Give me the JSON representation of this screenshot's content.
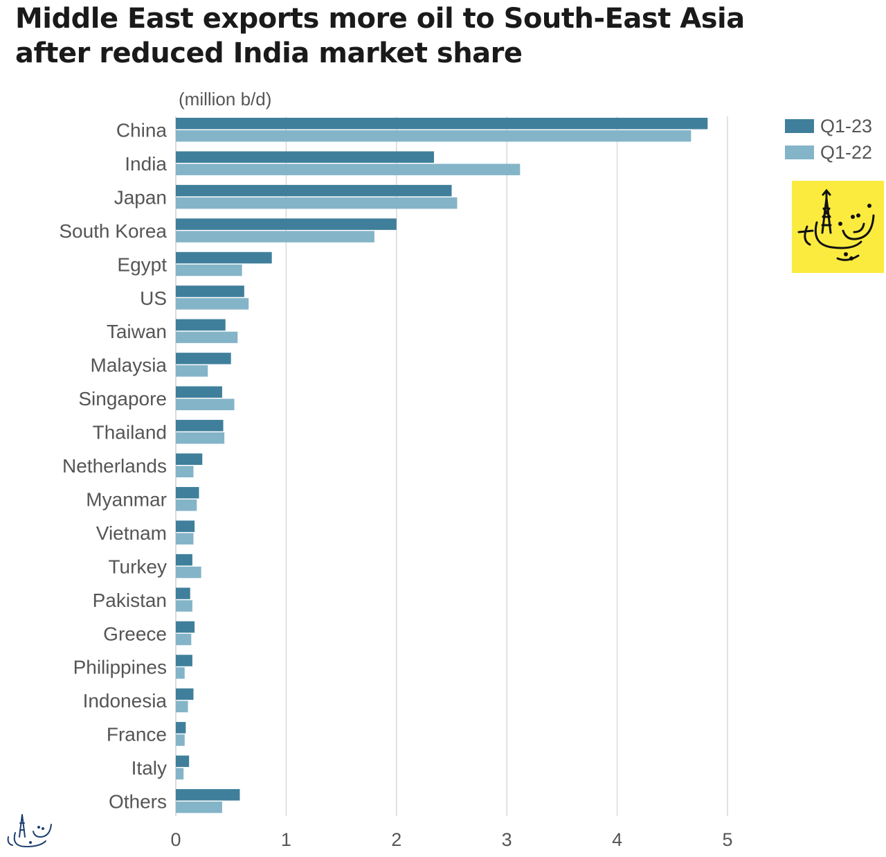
{
  "chart_data": {
    "type": "bar",
    "orientation": "horizontal",
    "title": "Middle East exports more oil to South-East Asia after reduced India market share",
    "title_lines": [
      "Middle East exports more oil to South-East Asia",
      "after reduced India market share"
    ],
    "unit_label": "(million b/d)",
    "categories": [
      "China",
      "India",
      "Japan",
      "South Korea",
      "Egypt",
      "US",
      "Taiwan",
      "Malaysia",
      "Singapore",
      "Thailand",
      "Netherlands",
      "Myanmar",
      "Vietnam",
      "Turkey",
      "Pakistan",
      "Greece",
      "Philippines",
      "Indonesia",
      "France",
      "Italy",
      "Others"
    ],
    "series": [
      {
        "name": "Q1-23",
        "color": "#3f7f9b",
        "values": [
          4.82,
          2.34,
          2.5,
          2.0,
          0.87,
          0.62,
          0.45,
          0.5,
          0.42,
          0.43,
          0.24,
          0.21,
          0.17,
          0.15,
          0.13,
          0.17,
          0.15,
          0.16,
          0.09,
          0.12,
          0.58
        ]
      },
      {
        "name": "Q1-22",
        "color": "#84b4c8",
        "values": [
          4.67,
          3.12,
          2.55,
          1.8,
          0.6,
          0.66,
          0.56,
          0.29,
          0.53,
          0.44,
          0.16,
          0.19,
          0.16,
          0.23,
          0.15,
          0.14,
          0.08,
          0.11,
          0.08,
          0.07,
          0.42
        ]
      }
    ],
    "xlim": [
      0,
      5
    ],
    "x_ticks": [
      0,
      1,
      2,
      3,
      4,
      5
    ],
    "grid": "vertical",
    "legend": "top-right",
    "colors": {
      "text": "#555555",
      "grid": "#d9d9d9",
      "logo_bg": "#fbeb3f"
    }
  }
}
